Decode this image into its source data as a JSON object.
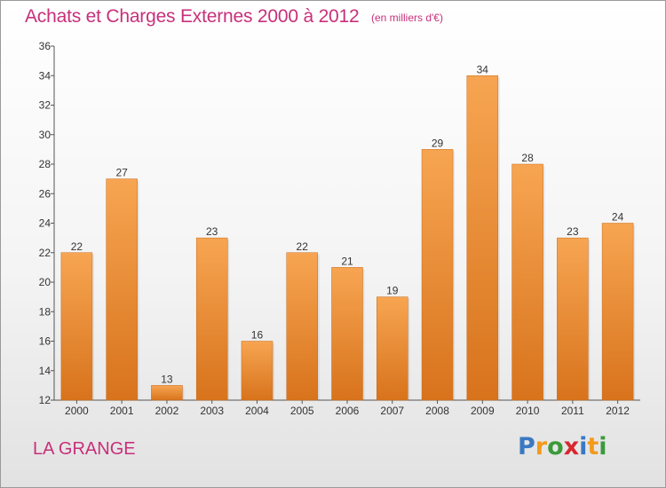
{
  "header": {
    "title": "Achats et Charges Externes 2000 à 2012",
    "subtitle": "(en milliers d'€)"
  },
  "footer": {
    "commune": "LA GRANGE",
    "brand": "Proxiti",
    "brand_letters": [
      "P",
      "r",
      "o",
      "x",
      "i",
      "t",
      "i"
    ],
    "brand_colors": [
      "#3a78c2",
      "#f29a1c",
      "#3a9a3a",
      "#d6282f",
      "#3a78c2",
      "#f29a1c",
      "#3a9a3a"
    ]
  },
  "colors": {
    "bar_light": "#f7a552",
    "bar_dark": "#d8731c",
    "title": "#c8307a",
    "axis": "#555555"
  },
  "chart_data": {
    "type": "bar",
    "title": "Achats et Charges Externes 2000 à 2012",
    "subtitle": "(en milliers d'€)",
    "categories": [
      "2000",
      "2001",
      "2002",
      "2003",
      "2004",
      "2005",
      "2006",
      "2007",
      "2008",
      "2009",
      "2010",
      "2011",
      "2012"
    ],
    "values": [
      22,
      27,
      13,
      23,
      16,
      22,
      21,
      19,
      29,
      34,
      28,
      23,
      24
    ],
    "ylim": [
      12,
      36
    ],
    "yticks": [
      12,
      14,
      16,
      18,
      20,
      22,
      24,
      26,
      28,
      30,
      32,
      34,
      36
    ],
    "xlabel": "",
    "ylabel": "",
    "grid": false,
    "legend": "none"
  }
}
